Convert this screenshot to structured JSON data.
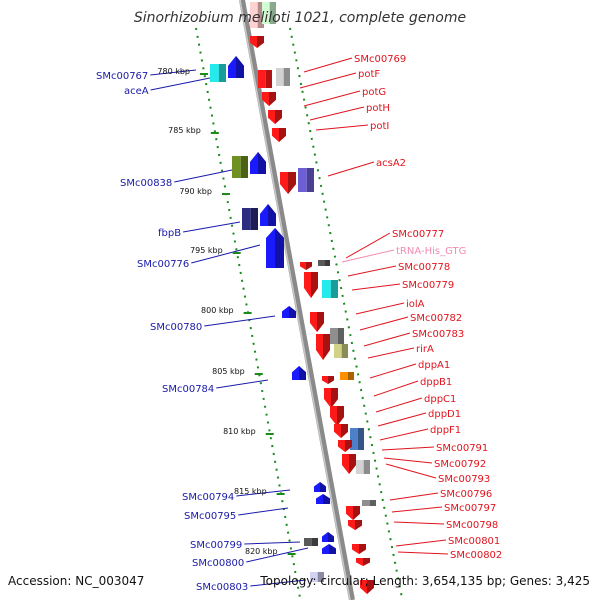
{
  "title": "Sinorhizobium meliloti 1021, complete genome",
  "footer": {
    "accession": "Accession: NC_003047",
    "summary": "Topology: circular; Length: 3,654,135 bp; Genes: 3,425"
  },
  "colors": {
    "backbone": "#8a8a8a",
    "minus_label": "#1a1aaa",
    "plus_label": "#e0141e",
    "trna_label": "#f08cb4",
    "tick_dots": "#1a8a1a",
    "plus_gene": "#ff1a1a",
    "minus_gene": "#1a1aff"
  },
  "scale": {
    "ticks": [
      "780 kbp",
      "785 kbp",
      "790 kbp",
      "795 kbp",
      "800 kbp",
      "805 kbp",
      "810 kbp",
      "815 kbp",
      "820 kbp"
    ]
  },
  "minus_labels": [
    "SMc00767",
    "aceA",
    "SMc00838",
    "fbpB",
    "SMc00776",
    "SMc00780",
    "SMc00784",
    "SMc00794",
    "SMc00795",
    "SMc00799",
    "SMc00800",
    "SMc00803"
  ],
  "plus_labels": [
    {
      "text": "SMc00769"
    },
    {
      "text": "potF"
    },
    {
      "text": "potG"
    },
    {
      "text": "potH"
    },
    {
      "text": "potI"
    },
    {
      "text": "acsA2"
    },
    {
      "text": "SMc00777"
    },
    {
      "text": "tRNA-His_GTG",
      "trna": true
    },
    {
      "text": "SMc00778"
    },
    {
      "text": "SMc00779"
    },
    {
      "text": "iolA"
    },
    {
      "text": "SMc00782"
    },
    {
      "text": "SMc00783"
    },
    {
      "text": "rirA"
    },
    {
      "text": "dppA1"
    },
    {
      "text": "dppB1"
    },
    {
      "text": "dppC1"
    },
    {
      "text": "dppD1"
    },
    {
      "text": "dppF1"
    },
    {
      "text": "SMc00791"
    },
    {
      "text": "SMc00792"
    },
    {
      "text": "SMc00793"
    },
    {
      "text": "SMc00796"
    },
    {
      "text": "SMc00797"
    },
    {
      "text": "SMc00798"
    },
    {
      "text": "SMc00801"
    },
    {
      "text": "SMc00802"
    }
  ]
}
